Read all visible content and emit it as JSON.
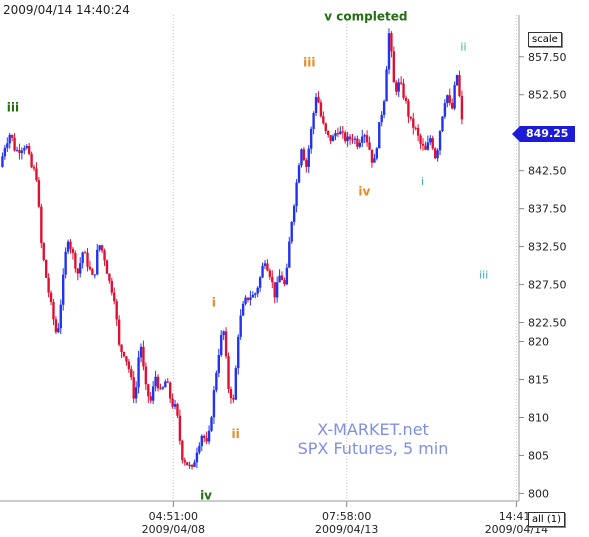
{
  "timestamp": "2009/04/14 14:40:24",
  "buttons": {
    "scale": "scale",
    "range": "all (1)"
  },
  "last_price_badge": "849.25",
  "watermark": {
    "line1": "X-MARKET.net",
    "line2": "SPX Futures, 5 min"
  },
  "colors": {
    "up": "#2233ee",
    "down": "#dd1133",
    "green": "#226e11",
    "orange": "#e88a22",
    "cyan": "#33aac2",
    "watermark": "#7f8fe6",
    "badge": "#1c1cd8"
  },
  "chart_data": {
    "type": "candlestick",
    "title": "",
    "watermark": "X-MARKET.net SPX Futures, 5 min",
    "y_axis": {
      "position": "right",
      "ylim": [
        799,
        863
      ],
      "ticks": [
        800,
        805,
        810,
        815,
        820,
        822.5,
        827.5,
        832.5,
        837.5,
        842.5,
        847.5,
        852.5,
        857.5
      ],
      "tick_labels": [
        "800",
        "805",
        "810",
        "815",
        "820",
        "822.50",
        "827.50",
        "832.50",
        "837.50",
        "842.50",
        "847.50",
        "852.50",
        "857.50"
      ]
    },
    "x_axis": {
      "ticks": [
        {
          "time": "04:51:00",
          "date": "2009/04/08",
          "pos": 0.334
        },
        {
          "time": "07:58:00",
          "date": "2009/04/13",
          "pos": 0.668
        },
        {
          "time": "14:41:",
          "date": "2009/04/14",
          "pos": 0.995
        }
      ],
      "gridlines": [
        0.334,
        0.668,
        0.995
      ]
    },
    "last_price": 849.25,
    "price_path": [
      [
        0.0,
        843.0
      ],
      [
        0.01,
        846.0
      ],
      [
        0.02,
        847.5
      ],
      [
        0.03,
        845.0
      ],
      [
        0.04,
        845.5
      ],
      [
        0.05,
        846.0
      ],
      [
        0.06,
        843.0
      ],
      [
        0.07,
        842.0
      ],
      [
        0.08,
        832.5
      ],
      [
        0.09,
        828.0
      ],
      [
        0.1,
        824.0
      ],
      [
        0.11,
        820.5
      ],
      [
        0.12,
        827.0
      ],
      [
        0.13,
        834.0
      ],
      [
        0.14,
        831.5
      ],
      [
        0.15,
        829.0
      ],
      [
        0.16,
        832.0
      ],
      [
        0.17,
        830.0
      ],
      [
        0.18,
        828.0
      ],
      [
        0.19,
        833.0
      ],
      [
        0.2,
        831.5
      ],
      [
        0.21,
        828.0
      ],
      [
        0.22,
        826.0
      ],
      [
        0.23,
        819.0
      ],
      [
        0.24,
        818.5
      ],
      [
        0.25,
        816.0
      ],
      [
        0.26,
        812.0
      ],
      [
        0.27,
        820.5
      ],
      [
        0.28,
        814.0
      ],
      [
        0.29,
        812.0
      ],
      [
        0.3,
        815.5
      ],
      [
        0.31,
        813.0
      ],
      [
        0.32,
        815.0
      ],
      [
        0.33,
        812.0
      ],
      [
        0.34,
        811.0
      ],
      [
        0.35,
        805.0
      ],
      [
        0.36,
        804.0
      ],
      [
        0.37,
        803.0
      ],
      [
        0.38,
        806.0
      ],
      [
        0.39,
        808.0
      ],
      [
        0.4,
        806.0
      ],
      [
        0.41,
        812.0
      ],
      [
        0.42,
        818.0
      ],
      [
        0.43,
        822.0
      ],
      [
        0.44,
        814.0
      ],
      [
        0.45,
        812.0
      ],
      [
        0.46,
        822.0
      ],
      [
        0.47,
        825.0
      ],
      [
        0.48,
        826.0
      ],
      [
        0.49,
        826.0
      ],
      [
        0.5,
        828.0
      ],
      [
        0.51,
        831.0
      ],
      [
        0.52,
        829.0
      ],
      [
        0.53,
        826.0
      ],
      [
        0.54,
        829.0
      ],
      [
        0.55,
        827.0
      ],
      [
        0.56,
        835.0
      ],
      [
        0.57,
        840.0
      ],
      [
        0.58,
        846.0
      ],
      [
        0.59,
        843.0
      ],
      [
        0.6,
        848.0
      ],
      [
        0.61,
        853.0
      ],
      [
        0.62,
        849.0
      ],
      [
        0.63,
        847.0
      ],
      [
        0.64,
        846.5
      ],
      [
        0.65,
        848.0
      ],
      [
        0.66,
        847.0
      ],
      [
        0.67,
        846.5
      ],
      [
        0.68,
        847.0
      ],
      [
        0.69,
        846.0
      ],
      [
        0.7,
        848.0
      ],
      [
        0.71,
        846.0
      ],
      [
        0.72,
        843.0
      ],
      [
        0.73,
        848.0
      ],
      [
        0.74,
        852.0
      ],
      [
        0.75,
        861.0
      ],
      [
        0.76,
        853.0
      ],
      [
        0.77,
        854.0
      ],
      [
        0.78,
        852.0
      ],
      [
        0.79,
        849.0
      ],
      [
        0.8,
        848.0
      ],
      [
        0.81,
        846.0
      ],
      [
        0.82,
        845.0
      ],
      [
        0.83,
        847.0
      ],
      [
        0.84,
        844.0
      ],
      [
        0.85,
        849.0
      ],
      [
        0.86,
        853.0
      ],
      [
        0.87,
        850.0
      ],
      [
        0.88,
        855.5
      ],
      [
        0.89,
        849.25
      ]
    ],
    "wave_labels": [
      {
        "text": "iii",
        "x": 0.025,
        "price": 850.3,
        "color": "green"
      },
      {
        "text": "v completed",
        "x": 0.705,
        "price": 862.3,
        "color": "green"
      },
      {
        "text": "iv",
        "x": 0.397,
        "price": 799.2,
        "color": "green"
      },
      {
        "text": "iii",
        "x": 0.596,
        "price": 856.2,
        "color": "orange"
      },
      {
        "text": "iv",
        "x": 0.702,
        "price": 839.2,
        "color": "orange"
      },
      {
        "text": "i",
        "x": 0.412,
        "price": 824.6,
        "color": "orange"
      },
      {
        "text": "ii",
        "x": 0.454,
        "price": 807.3,
        "color": "orange"
      },
      {
        "text": "ii",
        "x": 0.893,
        "price": 858.3,
        "color": "cyan"
      },
      {
        "text": "i",
        "x": 0.814,
        "price": 840.6,
        "color": "cyan"
      },
      {
        "text": "iii",
        "x": 0.932,
        "price": 828.3,
        "color": "cyan"
      }
    ]
  }
}
